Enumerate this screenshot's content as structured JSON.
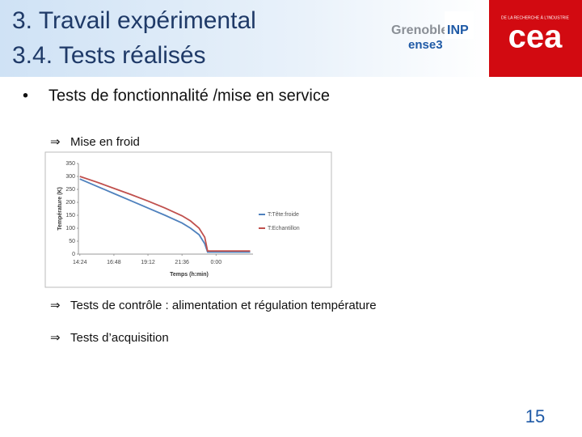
{
  "header": {
    "title_lines": [
      "3. Travail expérimental",
      "3.4. Tests réalisés"
    ],
    "logos": {
      "school": "Grenoble",
      "school_mark": "INP",
      "school_sub": "ense3",
      "cea_tagline": "DE LA RECHERCHE À L'INDUSTRIE",
      "cea": "cea"
    }
  },
  "body": {
    "bullet": {
      "marker": "•",
      "text": "Tests de fonctionnalité /mise en service"
    },
    "items": [
      {
        "marker": "⇒",
        "text": "Mise en froid"
      },
      {
        "marker": "⇒",
        "text": "Tests de contrôle : alimentation et régulation température"
      },
      {
        "marker": "⇒",
        "text": "Tests d’acquisition"
      }
    ]
  },
  "chart_data": {
    "type": "line",
    "x_label": "Temps (h:min)",
    "y_label": "Température (K)",
    "x": [
      14.4,
      15.6,
      16.8,
      18,
      19.2,
      20.4,
      21.6,
      22.2,
      22.8,
      23.2,
      23.4,
      24,
      25.2,
      26.4
    ],
    "series": [
      {
        "name": "T:Tête:froide",
        "color": "#4f81bd",
        "values": [
          290,
          262,
          234,
          206,
          178,
          150,
          120,
          100,
          75,
          40,
          8,
          8,
          8,
          8
        ]
      },
      {
        "name": "T:Echantillon",
        "color": "#c0504d",
        "values": [
          300,
          278,
          254,
          230,
          205,
          178,
          148,
          128,
          100,
          65,
          12,
          12,
          12,
          12
        ]
      }
    ],
    "xlim": [
      14.3,
      26.6
    ],
    "xticks": [
      {
        "value": 14.4,
        "label": "14:24"
      },
      {
        "value": 16.8,
        "label": "16:48"
      },
      {
        "value": 19.2,
        "label": "19:12"
      },
      {
        "value": 21.6,
        "label": "21:36"
      },
      {
        "value": 24,
        "label": "0:00"
      }
    ],
    "ylim": [
      0,
      350
    ],
    "yticks": [
      0,
      50,
      100,
      150,
      200,
      250,
      300,
      350
    ],
    "grid": false
  },
  "footer": {
    "page_number": "15"
  }
}
